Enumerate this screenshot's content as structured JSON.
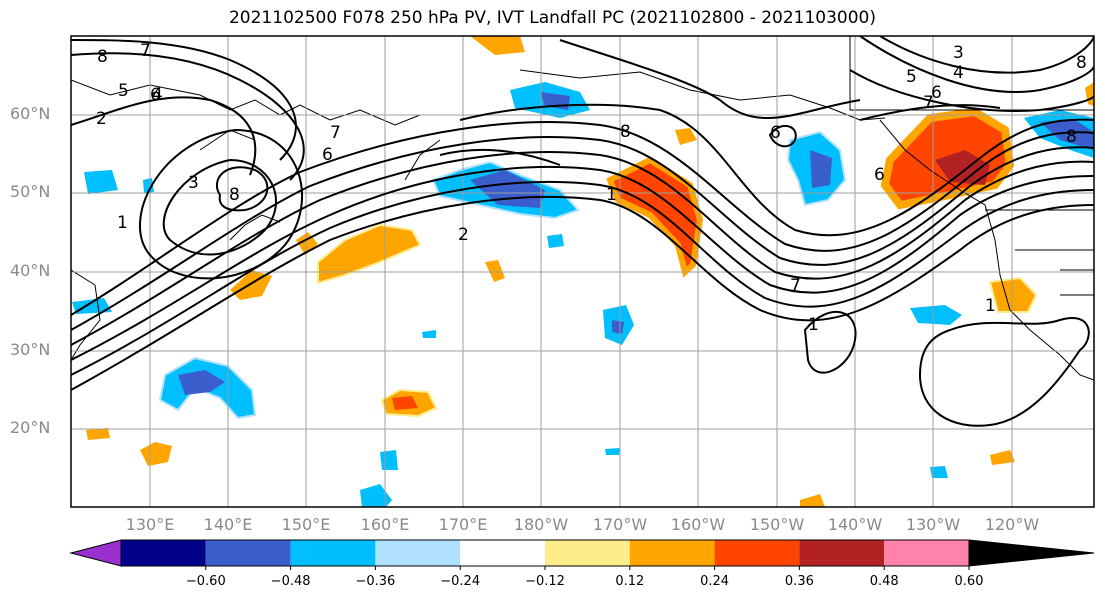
{
  "title": "2021102500 F078 250 hPa PV, IVT Landfall PC (2021102800 - 2021103000)",
  "lat_labels": [
    "60°N",
    "50°N",
    "40°N",
    "30°N",
    "20°N"
  ],
  "lon_labels": [
    "130°E",
    "140°E",
    "150°E",
    "160°E",
    "170°E",
    "180°W",
    "170°W",
    "160°W",
    "150°W",
    "140°W",
    "130°W",
    "120°W"
  ],
  "contour_labels": [
    "8",
    "7",
    "6",
    "5",
    "4",
    "2",
    "1",
    "3",
    "7",
    "6",
    "8",
    "2",
    "1",
    "6",
    "8",
    "7",
    "1",
    "1",
    "6",
    "3",
    "4",
    "5",
    "6",
    "7",
    "8",
    "8"
  ],
  "colorbar": {
    "tick_labels": [
      "−0.60",
      "−0.48",
      "−0.36",
      "−0.24",
      "−0.12",
      "0.12",
      "0.24",
      "0.36",
      "0.48",
      "0.60"
    ],
    "colors": [
      "#9b30d0",
      "#00008b",
      "#3a5fcd",
      "#00bfff",
      "#b0e2ff",
      "#ffffff",
      "#ffec8b",
      "#ffa500",
      "#ff4500",
      "#b22222",
      "#ff82ab"
    ]
  }
}
